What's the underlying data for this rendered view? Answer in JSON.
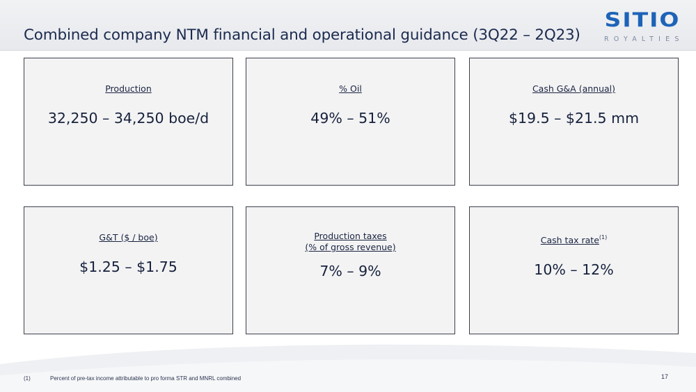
{
  "header": {
    "title": "Combined company NTM financial and operational guidance (3Q22 – 2Q23)"
  },
  "logo": {
    "name": "SITIO",
    "tagline": "ROYALTIES"
  },
  "cards": [
    {
      "label": "Production",
      "value": "32,250 – 34,250 boe/d"
    },
    {
      "label": "% Oil",
      "value": "49% – 51%"
    },
    {
      "label": "Cash G&A (annual)",
      "value": "$19.5 – $21.5 mm"
    },
    {
      "label": "G&T ($ / boe)",
      "value": "$1.25 – $1.75"
    },
    {
      "label": "Production taxes",
      "label_line2": "(% of gross revenue)",
      "value": "7% – 9%"
    },
    {
      "label": "Cash tax rate",
      "label_sup": "(1)",
      "value": "10% – 12%"
    }
  ],
  "footnote": {
    "marker": "(1)",
    "text": "Percent of pre-tax income attributable to pro forma STR and MNRL combined"
  },
  "page_number": "17",
  "colors": {
    "title": "#1b2a4e",
    "logo_blue": "#1d63b8",
    "card_border": "#3a3f4a",
    "card_fill": "#f3f3f4"
  }
}
